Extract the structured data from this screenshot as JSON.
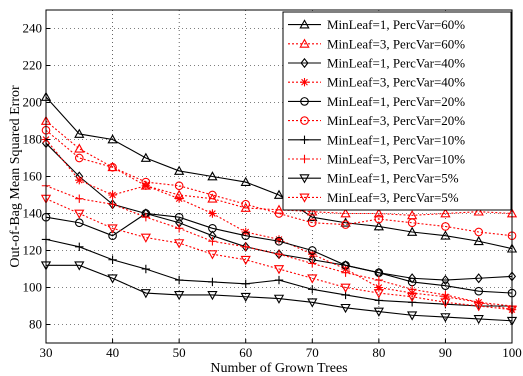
{
  "chart_data": {
    "type": "line",
    "title": "",
    "xlabel": "Number of Grown Trees",
    "ylabel": "Out-of-Bag Mean Squared Error",
    "xlim": [
      30,
      100
    ],
    "ylim": [
      70,
      250
    ],
    "xticks": [
      30,
      40,
      50,
      60,
      70,
      80,
      90,
      100
    ],
    "yticks": [
      80,
      100,
      120,
      140,
      160,
      180,
      200,
      220,
      240
    ],
    "grid": true,
    "legend_position": "top-right",
    "x": [
      30,
      35,
      40,
      45,
      50,
      55,
      60,
      65,
      70,
      75,
      80,
      85,
      90,
      95,
      100
    ],
    "series": [
      {
        "name": "MinLeaf=1, PercVar=60%",
        "color": "#000000",
        "dashed": false,
        "marker": "triangle-up",
        "values": [
          203,
          183,
          180,
          170,
          163,
          160,
          157,
          150,
          138,
          135,
          133,
          130,
          128,
          125,
          121
        ]
      },
      {
        "name": "MinLeaf=3, PercVar=60%",
        "color": "#ff0000",
        "dashed": true,
        "marker": "triangle-up",
        "values": [
          190,
          175,
          165,
          155,
          150,
          148,
          143,
          142,
          141,
          140,
          140,
          139,
          140,
          141,
          140
        ]
      },
      {
        "name": "MinLeaf=1, PercVar=40%",
        "color": "#000000",
        "dashed": false,
        "marker": "diamond",
        "values": [
          178,
          160,
          145,
          140,
          135,
          128,
          122,
          118,
          115,
          112,
          108,
          105,
          104,
          105,
          106
        ]
      },
      {
        "name": "MinLeaf=3, PercVar=40%",
        "color": "#ff0000",
        "dashed": true,
        "marker": "star",
        "values": [
          180,
          158,
          150,
          155,
          148,
          140,
          130,
          126,
          118,
          110,
          100,
          97,
          95,
          92,
          88
        ]
      },
      {
        "name": "MinLeaf=1, PercVar=20%",
        "color": "#000000",
        "dashed": false,
        "marker": "circle",
        "values": [
          138,
          135,
          128,
          140,
          138,
          132,
          128,
          125,
          120,
          112,
          108,
          103,
          101,
          98,
          97
        ]
      },
      {
        "name": "MinLeaf=3, PercVar=20%",
        "color": "#ff0000",
        "dashed": true,
        "marker": "circle",
        "values": [
          185,
          170,
          165,
          157,
          155,
          150,
          145,
          140,
          135,
          134,
          137,
          135,
          133,
          130,
          128
        ]
      },
      {
        "name": "MinLeaf=1, PercVar=10%",
        "color": "#000000",
        "dashed": false,
        "marker": "plus",
        "values": [
          126,
          122,
          115,
          110,
          104,
          103,
          102,
          104,
          99,
          96,
          93,
          92,
          91,
          90,
          90
        ]
      },
      {
        "name": "MinLeaf=3, PercVar=10%",
        "color": "#ff0000",
        "dashed": true,
        "marker": "plus",
        "values": [
          155,
          148,
          145,
          138,
          132,
          125,
          122,
          118,
          113,
          108,
          104,
          99,
          96,
          92,
          90
        ]
      },
      {
        "name": "MinLeaf=1, PercVar=5%",
        "color": "#000000",
        "dashed": false,
        "marker": "triangle-down",
        "values": [
          112,
          112,
          105,
          97,
          96,
          96,
          95,
          94,
          92,
          89,
          87,
          85,
          84,
          83,
          82
        ]
      },
      {
        "name": "MinLeaf=3, PercVar=5%",
        "color": "#ff0000",
        "dashed": true,
        "marker": "triangle-down",
        "values": [
          148,
          140,
          132,
          127,
          124,
          118,
          115,
          110,
          105,
          100,
          97,
          95,
          92,
          90,
          88
        ]
      }
    ]
  }
}
